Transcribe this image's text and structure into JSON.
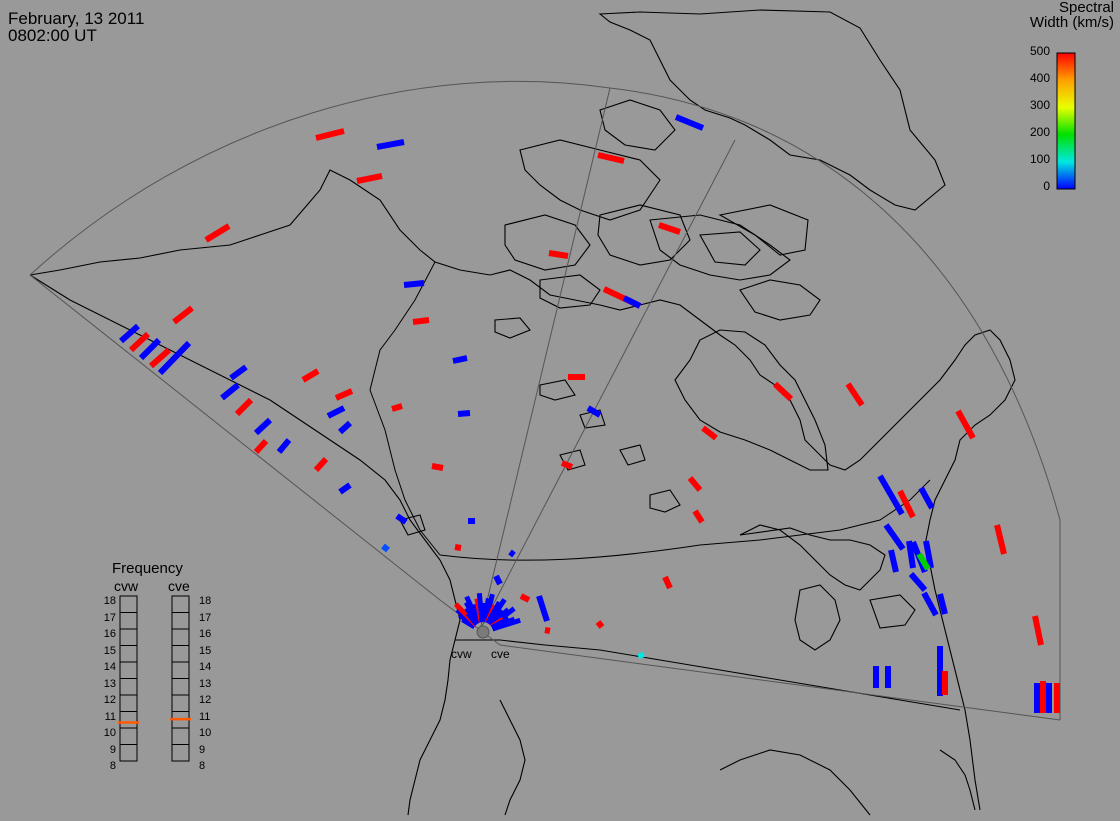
{
  "header": {
    "date": "February, 13 2011",
    "time": "0802:00 UT"
  },
  "colorbar": {
    "title_line1": "Spectral",
    "title_line2": "Width (km/s)",
    "labels": [
      "500",
      "400",
      "300",
      "200",
      "100",
      "0"
    ],
    "colors": [
      "#ff0000",
      "#ffa000",
      "#e8ff00",
      "#00e000",
      "#00e8e0",
      "#0000ff"
    ]
  },
  "frequency": {
    "title": "Frequency",
    "radar_left": "cvw",
    "radar_right": "cve",
    "scale": [
      "18",
      "17",
      "16",
      "15",
      "14",
      "13",
      "12",
      "11",
      "10",
      "9",
      "8"
    ],
    "cvw_mhz": 10.7,
    "cve_mhz": 10.9,
    "marker_color": "#ff5a00"
  },
  "radars": [
    {
      "name": "cvw"
    },
    {
      "name": "cve"
    }
  ],
  "fov_color": "#555555",
  "map_color": "#000000"
}
